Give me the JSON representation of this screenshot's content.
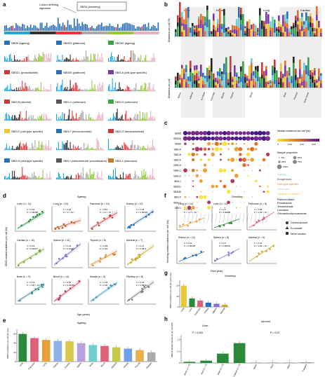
{
  "panels": {
    "a": {
      "letter": "a",
      "top_label_a": "Colour-defining",
      "top_label_b": "signature",
      "top_legend": "SBS4 (smoking)",
      "signatures": [
        {
          "label": "SBS5 (ageing)",
          "color": "#2c6fb8"
        },
        {
          "label": "SBS31 (platinum)",
          "color": "#2c6fb8"
        },
        {
          "label": "SBS40 (ageing)",
          "color": "#3aa04a"
        },
        {
          "label": "SBS21 (proscillaridin)",
          "color": "#c63c3c"
        },
        {
          "label": "SBS35 (platinum)",
          "color": "#2c6fb8"
        },
        {
          "label": "SBS-A (cell-type specific)",
          "color": "#7a3ca0"
        },
        {
          "label": "SBS-B (alcohol)",
          "color": "#c63c3c"
        },
        {
          "label": "SBS-C (unknown)",
          "color": "#555555"
        },
        {
          "label": "SBS-D (unknown)",
          "color": "#3aa04a"
        },
        {
          "label": "SBS-E (cell-type specific)",
          "color": "#e8c93a"
        },
        {
          "label": "SBS-F (temozolomide)",
          "color": "#2c6fb8"
        },
        {
          "label": "SBS-G (temozolomide)",
          "color": "#c63c3c"
        },
        {
          "label": "SBS-H (cell-type specific)",
          "color": "#2c6fb8"
        },
        {
          "label": "SBS-I (chlorambucil/ procarbazine)",
          "color": "#555555"
        },
        {
          "label": "SBS-J (unknown)",
          "color": "#c67a2c"
        }
      ]
    },
    "b": {
      "letter": "b",
      "ylabel_top": "Mutations per cell (%)",
      "ylabel_bottom": "Mutations per cell",
      "tissues": [
        "Liver",
        "Kidney",
        "Lung",
        "Cardiac"
      ],
      "organs": [
        "Spleen",
        "Adrenal",
        "Ex-hepat",
        "Pancreas",
        "Muscle",
        "Thyroid",
        "Blood",
        "Brain",
        "Pituitary",
        "Other tissue"
      ]
    },
    "c": {
      "letter": "c",
      "rows": [
        "SBS5",
        "SBS40",
        "SBS4",
        "SBS-A",
        "SBS-B",
        "SBS-E",
        "SBS-H",
        "SBS-C",
        "SBS-D",
        "SBS-J",
        "SBS31",
        "SBS35",
        "SBS-F",
        "SBS-G",
        "SBS-I"
      ],
      "legend_title": "Median mutations per cell (kb)",
      "legend_ticks": [
        "0",
        "0.20",
        "0.40",
        "0.60"
      ],
      "groups": [
        {
          "label": "Ageing",
          "color": "#8fcf8f"
        },
        {
          "label": "Exogenous",
          "color": "#333333"
        },
        {
          "label": "Cell-type specific",
          "color": "#d9842a"
        },
        {
          "label": "Unknown",
          "color": "#bbbbbb"
        },
        {
          "label": "Treatment related",
          "color": "#e8c93a"
        }
      ],
      "treatments": [
        "Platinum-based",
        "Procarbazine",
        "Temozolomide",
        "Lomustine",
        "Chlorambucil/procarbazine"
      ],
      "size_title": "Sample proportion",
      "size_labels": [
        "5%",
        "50%",
        "25%",
        "75%",
        "100%"
      ]
    },
    "d": {
      "letter": "d",
      "title": "Ageing",
      "ylabel": "SBS5-related mutations per cell (kb)",
      "xlabel": "Age (years)",
      "facets": [
        {
          "name": "Liver (n = 11)",
          "r2": "r² = 0.36",
          "p": "P = 0.00480",
          "color": "#2a8a3a"
        },
        {
          "name": "Lung (n = 10)",
          "r2": "r² = 0.06",
          "p": "P = 3 × 10⁻¹",
          "color": "#c65a2a"
        },
        {
          "name": "Pancreas (n = 10)",
          "r2": "r² = 0.81",
          "p": "P = 3.2 × 10⁻⁴",
          "color": "#c63c3c"
        },
        {
          "name": "Kidney (n = 11)",
          "r2": "r² = 0.48",
          "p": "P = 0.00539",
          "color": "#2a6fb8"
        },
        {
          "name": "Cardiac (n = 10)",
          "r2": "r² = 0.34",
          "p": "P = 0.00627",
          "color": "#7aa83a"
        },
        {
          "name": "Spleen (n = 11)",
          "r2": "r² = 0.49",
          "p": "P = 0.01089",
          "color": "#8a6fc8"
        },
        {
          "name": "Thyroid (n = 5)",
          "r2": "r² = 0.86",
          "p": "P = 0.02",
          "color": "#d98a2a"
        },
        {
          "name": "Adrenal (n = 7)",
          "r2": "r² = 0.47",
          "p": "P = 0.0871",
          "color": "#c8a82a"
        },
        {
          "name": "Brain (n = 9)",
          "r2": "r² = 0.43",
          "p": "P = 4.05 × 10⁻³",
          "color": "#3a8a8a"
        },
        {
          "name": "Blood (n = 14)",
          "r2": "r² = 0.55",
          "p": "P = 0.00053",
          "color": "#c63c5a"
        },
        {
          "name": "Muscle (n = 5)",
          "r2": "r² = 0.35",
          "p": "P = 0.28",
          "color": "#3a9ac8"
        },
        {
          "name": "Pituitary (n = 8)",
          "r2": "r² = 0.35",
          "p": "P = 0.08314",
          "color": "#7a7a7a"
        }
      ]
    },
    "e": {
      "letter": "e",
      "title": "Ageing",
      "ylabel": "SBS5 mutations per cell per year",
      "chart_data": {
        "type": "bar",
        "categories": [
          "Liver",
          "Pancreas",
          "Lung",
          "Kidney",
          "Cardiac",
          "Spleen",
          "Brain",
          "Blood",
          "Adrenal",
          "Muscle",
          "Thyroid",
          "Pituitary"
        ],
        "values": [
          60,
          51,
          47,
          45,
          44,
          40,
          36,
          34,
          31,
          28,
          25,
          20
        ],
        "colors": [
          "#2a8a3a",
          "#e0607a",
          "#e8a03a",
          "#8fb0e8",
          "#d9c84a",
          "#b9a0e0",
          "#6fcfcf",
          "#e0607a",
          "#c8c84a",
          "#6fa0e8",
          "#e8b04a",
          "#aaaaaa"
        ],
        "ylim": [
          0,
          70
        ],
        "yticks": [
          "0",
          "20",
          "40",
          "60"
        ]
      }
    },
    "f": {
      "letter": "f",
      "title": "Smoking",
      "ylabel": "Smoking-related mutations per cell (kb)",
      "xlabel": "Pack years",
      "facets": [
        {
          "name": "Lung (n = 14)",
          "r2": "r² = 0.71",
          "p": "P = 1.17 × 10⁻⁴",
          "color": "#e8a03a"
        },
        {
          "name": "Liver (n = 11)",
          "r2": "r² = 0.6",
          "p": "P = 0.00888",
          "color": "#2a8a3a"
        },
        {
          "name": "Pancreas (n = 5)",
          "r2": "r² = 0.88",
          "p": "P = 2.49 × 10⁻¹",
          "color": "#e0607a"
        },
        {
          "name": "Kidney (n = 10)",
          "r2": "r² = 0.42",
          "p": "P = 0.00228",
          "color": "#2a6fb8"
        },
        {
          "name": "Spleen (n = 8)",
          "r2": "r² = 0.5",
          "p": "P = 0.00015",
          "color": "#8a6fc8"
        },
        {
          "name": "Adrenal (n = 5)",
          "r2": "r² = 0.91",
          "p": "P = 3.09 × 10⁻¹",
          "color": "#c8a82a"
        }
      ],
      "legend": [
        "Current smoker",
        "Ex-smoker",
        "Never smoker"
      ]
    },
    "g": {
      "letter": "g",
      "title": "Smoking",
      "ylabel": "SBS4 mutations per cell per pack year",
      "chart_data": {
        "type": "bar",
        "categories": [
          "Lung",
          "Liver",
          "Pancreas",
          "Kidney",
          "Spleen",
          "Adrenal"
        ],
        "values": [
          20,
          8,
          6,
          4,
          3,
          2
        ],
        "colors": [
          "#e8c93a",
          "#2a8a3a",
          "#e0607a",
          "#2a6fb8",
          "#8a6fc8",
          "#c8a82a"
        ],
        "ylim": [
          0,
          25
        ],
        "yticks": [
          "0",
          "10",
          "20"
        ]
      }
    },
    "h": {
      "letter": "h",
      "title": "Alcohol",
      "ylabel": "SBS-B-related mutations per cell (kb)",
      "liver_label": "Liver",
      "other_label": "Other",
      "p_liver": "P = 0.005",
      "p_other": "P = 0.02",
      "chart_data": {
        "type": "bar",
        "categories": [
          "Never (n = 9)",
          "Rare (n = 4)",
          "Often (n = 3)",
          "Frequent (n = 5)",
          "Never",
          "Rare",
          "Often",
          "Frequent"
        ],
        "values": [
          0.05,
          0.1,
          0.4,
          0.85,
          0.02,
          0.02,
          0.02,
          0.03
        ],
        "colors": [
          "#2a8a3a",
          "#2a8a3a",
          "#2a8a3a",
          "#2a8a3a",
          "#999999",
          "#999999",
          "#999999",
          "#999999"
        ],
        "ylim": [
          0,
          1.2
        ],
        "yticks": [
          "0",
          "0.5",
          "1.0"
        ]
      }
    }
  }
}
